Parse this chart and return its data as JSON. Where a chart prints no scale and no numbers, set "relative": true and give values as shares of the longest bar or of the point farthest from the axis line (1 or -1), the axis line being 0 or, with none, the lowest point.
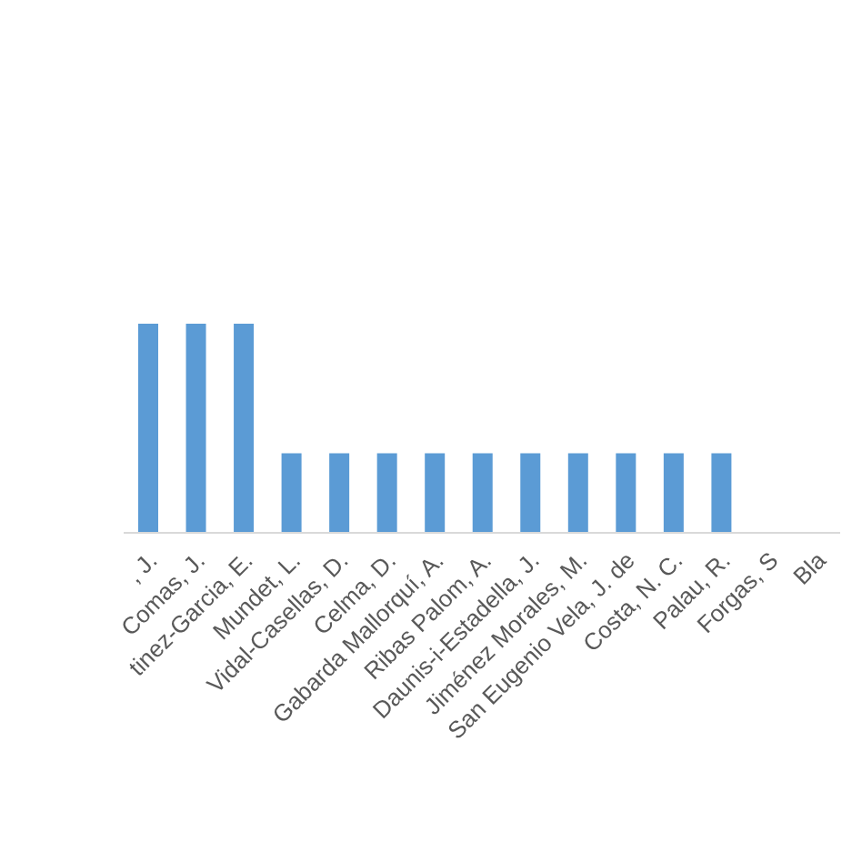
{
  "chart_data": {
    "type": "bar",
    "relative": true,
    "categories": [
      ", J.",
      "Comas, J.",
      "tinez-Garcia, E.",
      "Mundet, L.",
      "Vidal-Casellas, D.",
      "Celma, D.",
      "Gabarda Mallorquí, A.",
      "Ribas Palom, A.",
      "Daunis-i-Estadella, J.",
      "Jiménez Morales, M.",
      "San Eugenio Vela, J. de",
      "Costa, N. C.",
      "Palau, R.",
      "Forgas, S",
      "Bla"
    ],
    "values": [
      1,
      1,
      1,
      0.38,
      0.38,
      0.38,
      0.38,
      0.38,
      0.38,
      0.38,
      0.38,
      0.38,
      0.38,
      null,
      null
    ],
    "color": "#5b9bd5",
    "grid": false,
    "legend": false
  }
}
